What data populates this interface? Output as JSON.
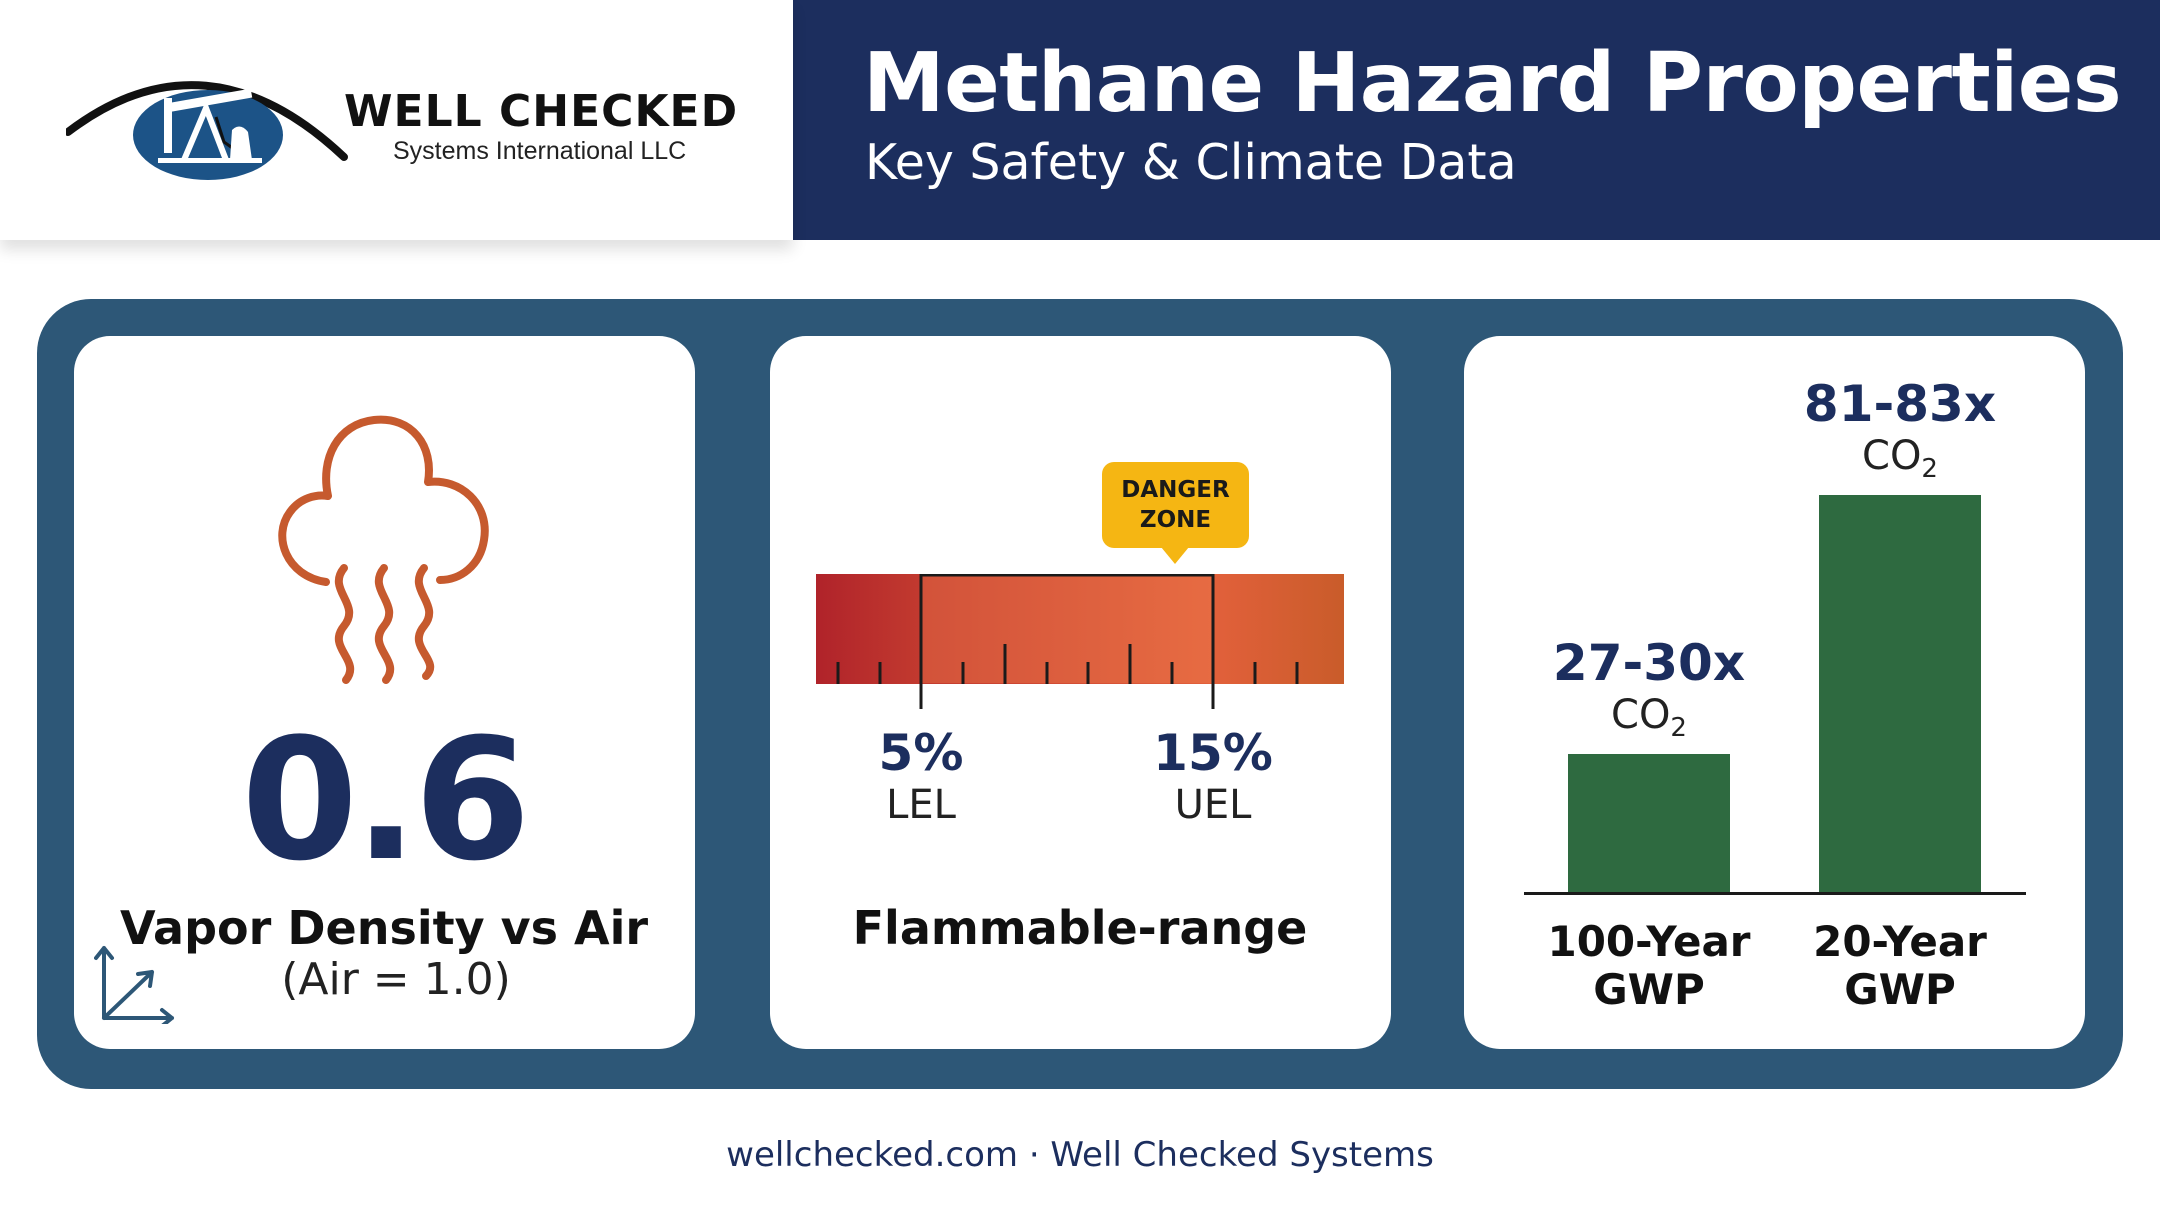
{
  "logo": {
    "name": "WELL CHECKED",
    "sub": "Systems International LLC"
  },
  "header": {
    "title": "Methane Hazard Properties",
    "subtitle": "Key Safety & Climate Data"
  },
  "vapor_card": {
    "icon": "vapor-cloud-icon",
    "value": "0.6",
    "label": "Vapor Density vs Air",
    "note": "(Air = 1.0)",
    "corner_icon": "axes-arrows-icon"
  },
  "flammable_card": {
    "badge_line1": "DANGER",
    "badge_line2": "ZONE",
    "lel_value": "5%",
    "lel_label": "LEL",
    "uel_value": "15%",
    "uel_label": "UEL",
    "label": "Flammable-range"
  },
  "gwp_card": {
    "unit": "CO",
    "unit_sub": "2"
  },
  "chart_data": {
    "type": "bar",
    "categories": [
      "100-Year GWP",
      "20-Year GWP"
    ],
    "category_lines": [
      [
        "100-Year",
        "GWP"
      ],
      [
        "20-Year",
        "GWP"
      ]
    ],
    "value_labels": [
      "27-30x",
      "81-83x"
    ],
    "values": [
      28.5,
      82
    ],
    "ylim": [
      0,
      100
    ],
    "bar_color": "#2e6a40"
  },
  "colors": {
    "navy": "#1c2e5e",
    "panel": "#2d5777",
    "icon_orange": "#c65a2e",
    "badge_yellow": "#f5b613"
  },
  "footer": {
    "text": "wellchecked.com · Well Checked Systems"
  }
}
